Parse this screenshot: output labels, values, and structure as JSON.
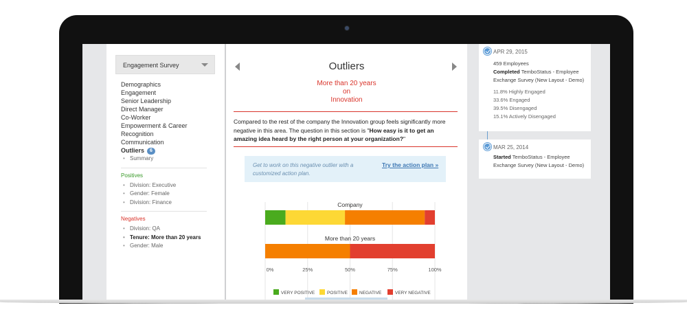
{
  "sidebar": {
    "survey_select": "Engagement Survey",
    "nav": [
      "Demographics",
      "Engagement",
      "Senior Leadership",
      "Direct Manager",
      "Co-Worker",
      "Empowerment & Career",
      "Recognition",
      "Communication"
    ],
    "outliers_label": "Outliers",
    "outliers_count": "6",
    "outliers_sub": "Summary",
    "positives_heading": "Positives",
    "positives": [
      "Division: Executive",
      "Gender: Female",
      "Division: Finance"
    ],
    "negatives_heading": "Negatives",
    "negatives": [
      "Division: QA",
      "Tenure: More than 20 years",
      "Gender: Male"
    ]
  },
  "center": {
    "title": "Outliers",
    "subtitle_line1": "More than 20 years",
    "subtitle_line2": "on",
    "subtitle_line3": "Innovation",
    "desc_text": "Compared to the rest of the company the Innovation group feels significantly more negative in this area. The question in this section is \"",
    "desc_question": "How easy is it to get an amazing idea heard by the right person at your organization?",
    "desc_end": "\"",
    "callout_text": "Get to work on this negative outlier with a customized action plan.",
    "callout_link": "Try the action plan »"
  },
  "chart_data": {
    "type": "bar",
    "orientation": "horizontal",
    "stacked": true,
    "categories": [
      "Company",
      "More than 20 years"
    ],
    "series": [
      {
        "name": "VERY POSITIVE",
        "color": "#4aab1e",
        "values": [
          12,
          0
        ]
      },
      {
        "name": "POSITIVE",
        "color": "#fdd835",
        "values": [
          35,
          0
        ]
      },
      {
        "name": "NEGATIVE",
        "color": "#f57f00",
        "values": [
          47,
          50
        ]
      },
      {
        "name": "VERY NEGATIVE",
        "color": "#e23f2f",
        "values": [
          6,
          50
        ]
      }
    ],
    "x_ticks": [
      "0%",
      "25%",
      "50%",
      "75%",
      "100%"
    ],
    "xlim": [
      0,
      100
    ]
  },
  "timeline": [
    {
      "date": "APR 29, 2015",
      "employees": "459 Employees",
      "status": "Completed",
      "survey": "TemboStatus - Employee Exchange Survey (New Layout - Demo)",
      "stats": [
        "11.8% Highly Engaged",
        "33.6% Engaged",
        "39.5% Disengaged",
        "15.1% Actively Disengaged"
      ]
    },
    {
      "date": "MAR 25, 2014",
      "status": "Started",
      "survey": "TemboStatus - Employee Exchange Survey (New Layout - Demo)"
    }
  ]
}
